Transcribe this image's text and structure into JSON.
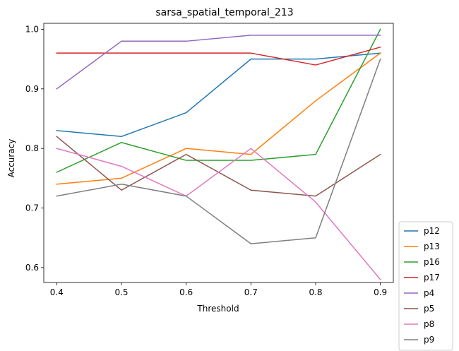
{
  "chart_data": {
    "type": "line",
    "title": "sarsa_spatial_temporal_213",
    "xlabel": "Threshold",
    "ylabel": "Accuracy",
    "x": [
      0.4,
      0.5,
      0.6,
      0.7,
      0.8,
      0.9
    ],
    "xlim": [
      0.38,
      0.92
    ],
    "ylim": [
      0.575,
      1.01
    ],
    "xticks": [
      0.4,
      0.5,
      0.6,
      0.7,
      0.8,
      0.9
    ],
    "xtick_labels": [
      "0.4",
      "0.5",
      "0.6",
      "0.7",
      "0.8",
      "0.9"
    ],
    "yticks": [
      0.6,
      0.7,
      0.8,
      0.9,
      1.0
    ],
    "ytick_labels": [
      "0.6",
      "0.7",
      "0.8",
      "0.9",
      "1.0"
    ],
    "grid": false,
    "legend_position": "outside-bottom-right",
    "series": [
      {
        "name": "p12",
        "color": "#1f77b4",
        "values": [
          0.83,
          0.82,
          0.86,
          0.95,
          0.95,
          0.96
        ]
      },
      {
        "name": "p13",
        "color": "#ff7f0e",
        "values": [
          0.74,
          0.75,
          0.8,
          0.79,
          0.88,
          0.96
        ]
      },
      {
        "name": "p16",
        "color": "#2ca02c",
        "values": [
          0.76,
          0.81,
          0.78,
          0.78,
          0.79,
          1.0
        ]
      },
      {
        "name": "p17",
        "color": "#d62728",
        "values": [
          0.96,
          0.96,
          0.96,
          0.96,
          0.94,
          0.97
        ]
      },
      {
        "name": "p4",
        "color": "#9467bd",
        "values": [
          0.9,
          0.98,
          0.98,
          0.99,
          0.99,
          0.99
        ]
      },
      {
        "name": "p5",
        "color": "#8c564b",
        "values": [
          0.82,
          0.73,
          0.79,
          0.73,
          0.72,
          0.79
        ]
      },
      {
        "name": "p8",
        "color": "#e377c2",
        "values": [
          0.8,
          0.77,
          0.72,
          0.8,
          0.71,
          0.58
        ]
      },
      {
        "name": "p9",
        "color": "#7f7f7f",
        "values": [
          0.72,
          0.74,
          0.72,
          0.64,
          0.65,
          0.95
        ]
      }
    ]
  }
}
